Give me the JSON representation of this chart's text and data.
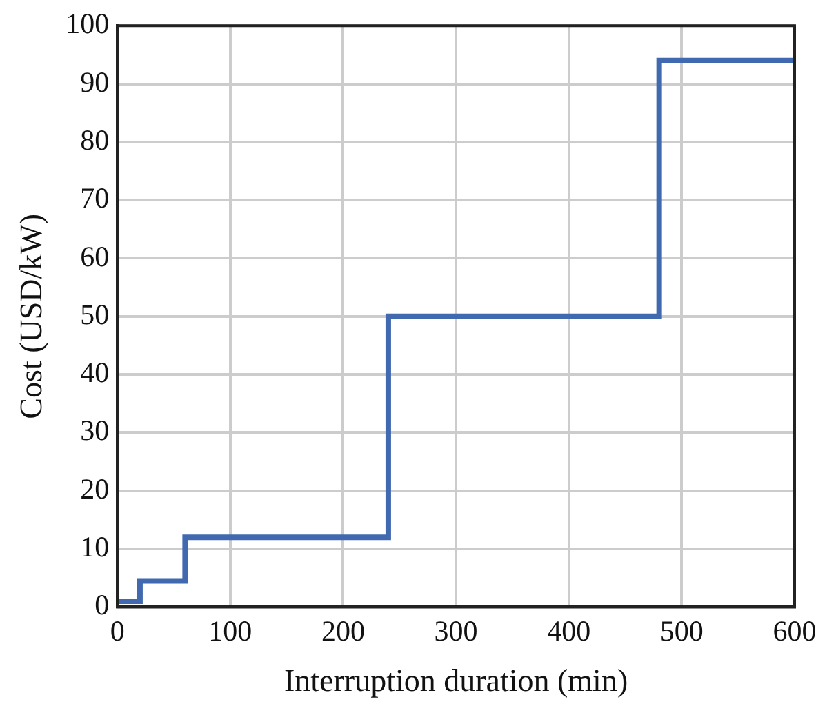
{
  "chart_data": {
    "type": "step",
    "xlabel": "Interruption duration (min)",
    "ylabel": "Cost (USD/kW)",
    "x": [
      0,
      20,
      60,
      240,
      480,
      600
    ],
    "series": [
      {
        "color": "#4169b0",
        "values": [
          1,
          4.5,
          12,
          50,
          94,
          94
        ]
      }
    ],
    "xlim": [
      0,
      600
    ],
    "xticks": [
      0,
      100,
      200,
      300,
      400,
      500,
      600
    ],
    "ylim": [
      0,
      100
    ],
    "yticks": [
      0,
      10,
      20,
      30,
      40,
      50,
      60,
      70,
      80,
      90,
      100
    ],
    "grid": true,
    "legend": false,
    "marker": "none",
    "line_style": "solid"
  }
}
